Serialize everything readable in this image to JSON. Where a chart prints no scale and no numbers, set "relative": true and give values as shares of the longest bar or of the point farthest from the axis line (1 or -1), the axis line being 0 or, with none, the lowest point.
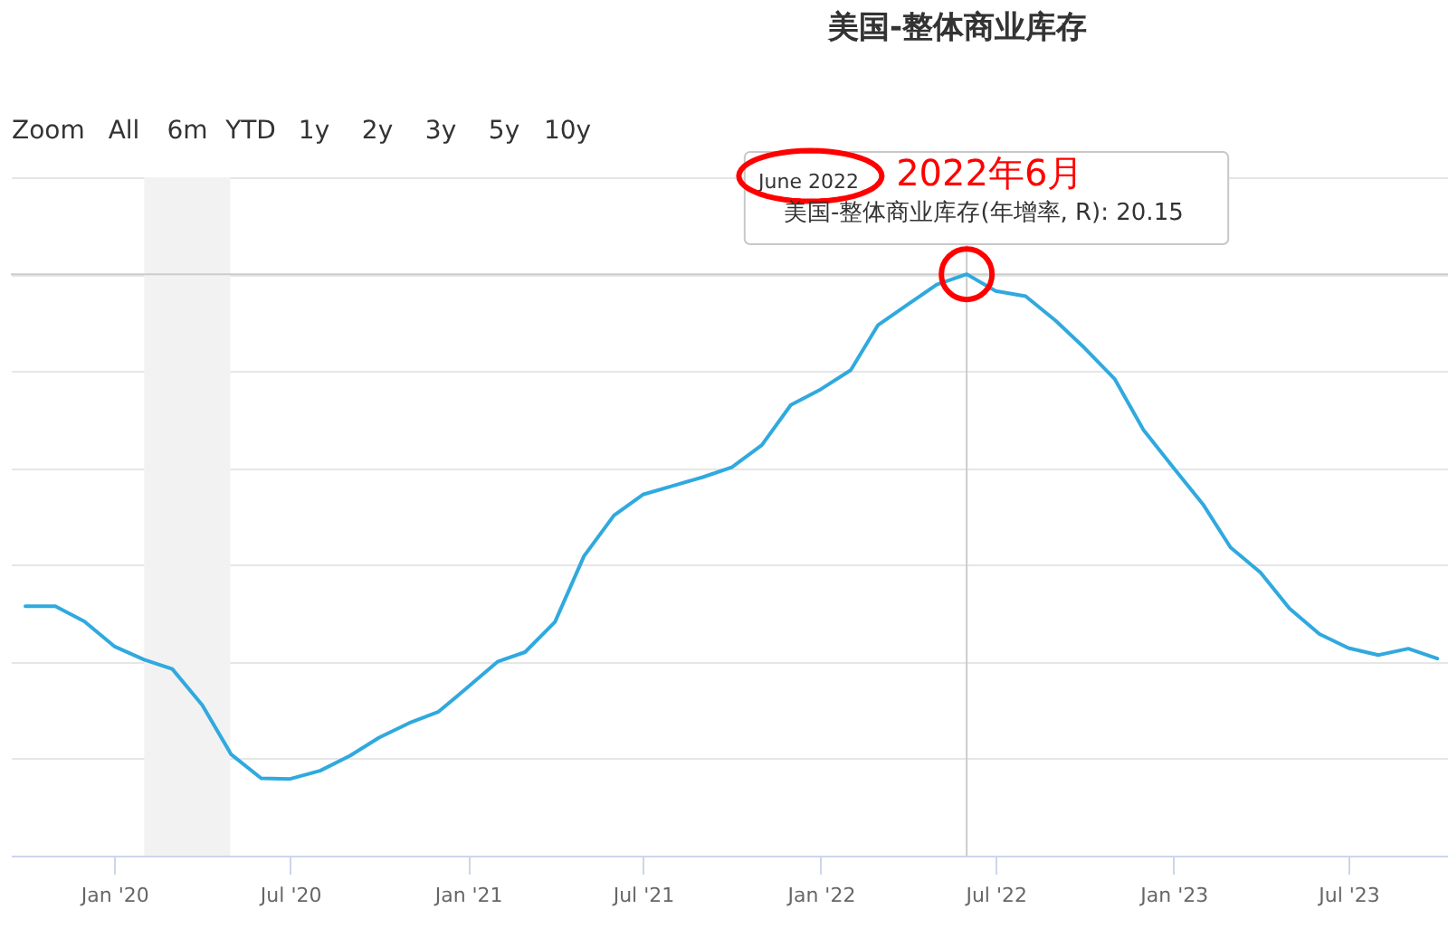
{
  "chart_data": {
    "type": "line",
    "title": "美国-整体商业库存",
    "x": [
      "2019-10",
      "2019-11",
      "2019-12",
      "2020-01",
      "2020-02",
      "2020-03",
      "2020-04",
      "2020-05",
      "2020-06",
      "2020-07",
      "2020-08",
      "2020-09",
      "2020-10",
      "2020-11",
      "2020-12",
      "2021-01",
      "2021-02",
      "2021-03",
      "2021-04",
      "2021-05",
      "2021-06",
      "2021-07",
      "2021-08",
      "2021-09",
      "2021-10",
      "2021-11",
      "2021-12",
      "2022-01",
      "2022-02",
      "2022-03",
      "2022-04",
      "2022-05",
      "2022-06",
      "2022-07",
      "2022-08",
      "2022-09",
      "2022-10",
      "2022-11",
      "2022-12",
      "2023-01",
      "2023-02",
      "2023-03",
      "2023-04",
      "2023-05",
      "2023-06",
      "2023-07",
      "2023-08",
      "2023-09",
      "2023-10"
    ],
    "series": [
      {
        "color": "#30a9de",
        "values": [
          0.429,
          0.429,
          0.403,
          0.36,
          0.337,
          0.321,
          0.259,
          0.174,
          0.133,
          0.132,
          0.146,
          0.172,
          0.203,
          0.228,
          0.247,
          0.29,
          0.334,
          0.35,
          0.402,
          0.515,
          0.585,
          0.621,
          0.636,
          0.651,
          0.668,
          0.706,
          0.775,
          0.802,
          0.835,
          0.912,
          0.948,
          0.982,
          1,
          0.971,
          0.962,
          0.92,
          0.873,
          0.82,
          0.732,
          0.667,
          0.603,
          0.53,
          0.487,
          0.425,
          0.381,
          0.357,
          0.345,
          0.356,
          0.339
        ]
      },
      {
        "type": "scatter",
        "x": [
          "2022-06"
        ],
        "values": [
          1
        ],
        "color": "#ff0000",
        "marker": "circle"
      }
    ],
    "relative": true,
    "xlim": [
      "2019-09-16",
      "2023-10-12"
    ],
    "xticks": [
      {
        "value": "2020-01",
        "label": "Jan '20"
      },
      {
        "value": "2020-07",
        "label": "Jul '20"
      },
      {
        "value": "2021-01",
        "label": "Jan '21"
      },
      {
        "value": "2021-07",
        "label": "Jul '21"
      },
      {
        "value": "2022-01",
        "label": "Jan '22"
      },
      {
        "value": "2022-07",
        "label": "Jul '22"
      },
      {
        "value": "2023-01",
        "label": "Jan '23"
      },
      {
        "value": "2023-07",
        "label": "Jul '23"
      }
    ],
    "grid": "y",
    "bands": [
      {
        "axis": "x",
        "from": "2020-02",
        "to": "2020-04-30",
        "color": "#f2f2f2"
      }
    ],
    "ref_lines": [
      {
        "axis": "x",
        "value": "2022-06",
        "color": "#cccccc"
      },
      {
        "axis": "y",
        "value": 1,
        "color": "#cccccc"
      }
    ],
    "annotations": [
      "Zoom",
      "All",
      "6m",
      "YTD",
      "1y",
      "2y",
      "3y",
      "5y",
      "10y",
      "June 2022",
      {
        "text": "2022年6月",
        "x": "2022-06",
        "y": 1
      },
      "美国-整体商业库存(年增率, R): 20.15"
    ]
  }
}
